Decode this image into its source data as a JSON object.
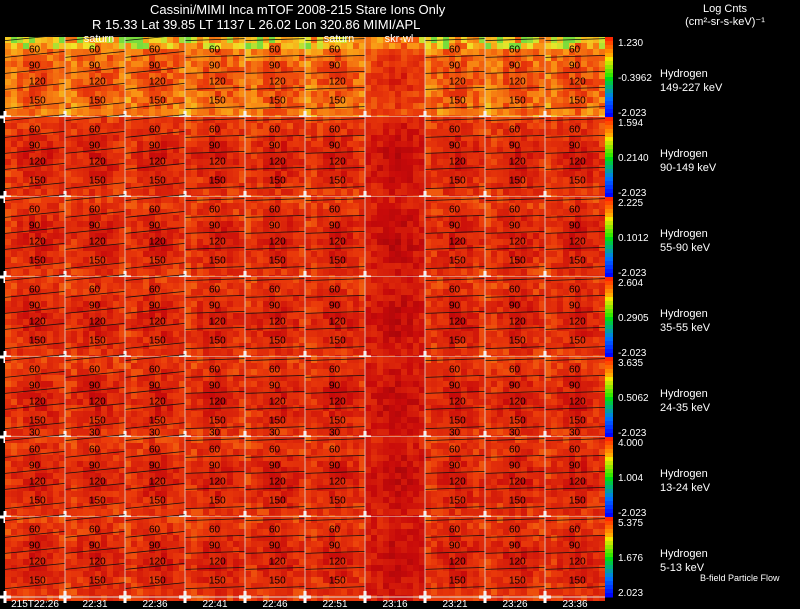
{
  "header": {
    "title": "Cassini/MIMI Inca mTOF  2008-215   Stare    Ions Only",
    "subtitle": "R      15.33 Lat 39.85 LT 1137 L       26.02 Lon        320.86  MIMI/APL",
    "units_line1": "Log Cnts",
    "units_line2": "(cm²-sr-s-keV)⁻¹"
  },
  "chart_data": {
    "type": "heatmap",
    "title": "Cassini/MIMI Inca mTOF 2008-215 Stare Ions Only",
    "time_labels": [
      "215T22:26",
      "22:31",
      "22:36",
      "22:41",
      "22:46",
      "22:51",
      "23:16",
      "23:21",
      "23:26",
      "23:36"
    ],
    "overlay_labels": [
      {
        "label": "saturn",
        "column": 1
      },
      {
        "label": "saturn",
        "column": 5
      },
      {
        "label": "skr-wl",
        "column": 6
      }
    ],
    "contour_labels": [
      "30",
      "60",
      "90",
      "120",
      "150"
    ],
    "footer_note": "B-field Particle Flow",
    "rows": [
      {
        "species": "Hydrogen",
        "energy": "149-227 keV",
        "cbar_max": "1.230",
        "cbar_mid": "-0.3962",
        "cbar_min": "-2.023"
      },
      {
        "species": "Hydrogen",
        "energy": "90-149 keV",
        "cbar_max": "1.594",
        "cbar_mid": "0.2140",
        "cbar_min": "-2.023"
      },
      {
        "species": "Hydrogen",
        "energy": "55-90 keV",
        "cbar_max": "2.225",
        "cbar_mid": "0.1012",
        "cbar_min": "-2.023"
      },
      {
        "species": "Hydrogen",
        "energy": "35-55 keV",
        "cbar_max": "2.604",
        "cbar_mid": "0.2905",
        "cbar_min": "-2.023"
      },
      {
        "species": "Hydrogen",
        "energy": "24-35 keV",
        "cbar_max": "3.635",
        "cbar_mid": "0.5062",
        "cbar_min": "-2.023"
      },
      {
        "species": "Hydrogen",
        "energy": "13-24 keV",
        "cbar_max": "4.000",
        "cbar_mid": "1.004",
        "cbar_min": "-2.023"
      },
      {
        "species": "Hydrogen",
        "energy": "5-13 keV",
        "cbar_max": "5.375",
        "cbar_mid": "1.676",
        "cbar_min": "2.023"
      }
    ]
  }
}
